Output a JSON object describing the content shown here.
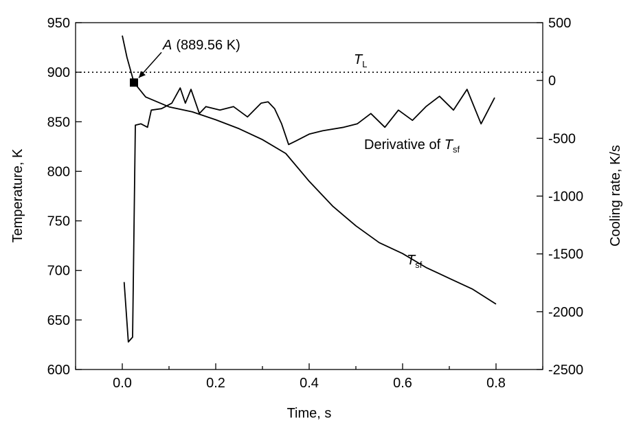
{
  "chart_data": {
    "type": "line",
    "xlabel": "Time, s",
    "ylabel": "Temperature, K",
    "y2label": "Cooling rate, K/s",
    "xlim": [
      -0.1,
      0.9
    ],
    "ylim": [
      600,
      950
    ],
    "y2lim": [
      -2500,
      500
    ],
    "xticks": [
      {
        "value": 0,
        "label": "0.0"
      },
      {
        "value": 0.2,
        "label": "0.2"
      },
      {
        "value": 0.4,
        "label": "0.4"
      },
      {
        "value": 0.6,
        "label": "0.6"
      },
      {
        "value": 0.8,
        "label": "0.8"
      }
    ],
    "xminor": [
      -0.1,
      0.1,
      0.3,
      0.5,
      0.7,
      0.9
    ],
    "yticks": [
      600,
      650,
      700,
      750,
      800,
      850,
      900,
      950
    ],
    "y2ticks": [
      -2500,
      -2000,
      -1500,
      -1000,
      -500,
      0,
      500
    ],
    "series": [
      {
        "label": "T",
        "label_sub": "sf",
        "color": "#000000",
        "x": [
          0,
          0.01,
          0.025,
          0.05,
          0.1,
          0.15,
          0.2,
          0.25,
          0.3,
          0.35,
          0.4,
          0.45,
          0.5,
          0.55,
          0.6,
          0.65,
          0.7,
          0.75,
          0.8
        ],
        "values": [
          937,
          915,
          889.56,
          875,
          865,
          860,
          852,
          843,
          832,
          818,
          790,
          765,
          745,
          728,
          717,
          703,
          692,
          681,
          666
        ]
      },
      {
        "label": "Derivative of T",
        "label_sub": "sf",
        "color": "#000000",
        "axis": "y2",
        "x": [
          0.004,
          0.013,
          0.022,
          0.028,
          0.04,
          0.054,
          0.062,
          0.084,
          0.106,
          0.124,
          0.135,
          0.147,
          0.165,
          0.179,
          0.209,
          0.238,
          0.268,
          0.297,
          0.312,
          0.326,
          0.341,
          0.356,
          0.371,
          0.4,
          0.429,
          0.474,
          0.503,
          0.532,
          0.562,
          0.591,
          0.621,
          0.65,
          0.679,
          0.709,
          0.738,
          0.768,
          0.797
        ],
        "values": [
          -1744,
          -2262,
          -2220,
          -387,
          -375,
          -405,
          -256,
          -244,
          -196,
          -65,
          -196,
          -77,
          -286,
          -226,
          -256,
          -226,
          -315,
          -196,
          -185,
          -244,
          -375,
          -554,
          -524,
          -464,
          -435,
          -405,
          -375,
          -286,
          -405,
          -256,
          -345,
          -226,
          -137,
          -256,
          -77,
          -375,
          -149
        ]
      }
    ],
    "point": {
      "x": 0.025,
      "y": 889.56,
      "label": "A",
      "label_text": "(889.56 K)"
    },
    "liquidus": {
      "y": 900,
      "label": "T",
      "label_sub": "L"
    }
  }
}
